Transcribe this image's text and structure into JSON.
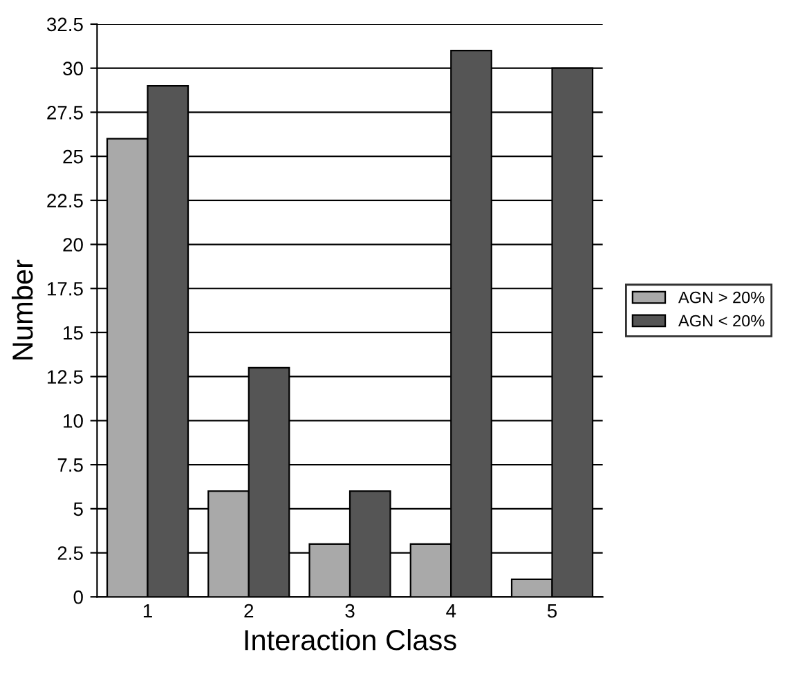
{
  "chart_data": {
    "type": "bar",
    "xlabel": "Interaction Class",
    "ylabel": "Number",
    "categories": [
      "1",
      "2",
      "3",
      "4",
      "5"
    ],
    "series": [
      {
        "name": "AGN > 20%",
        "color": "#a9a9a9",
        "values": [
          26,
          6,
          3,
          3,
          1
        ]
      },
      {
        "name": "AGN < 20%",
        "color": "#555555",
        "values": [
          29,
          13,
          6,
          31,
          30
        ]
      }
    ],
    "ylim": [
      0,
      32.5
    ],
    "yticks": [
      0,
      2.5,
      5,
      7.5,
      10,
      12.5,
      15,
      17.5,
      20,
      22.5,
      25,
      27.5,
      30,
      32.5
    ],
    "grid": "y",
    "legend": "right"
  }
}
